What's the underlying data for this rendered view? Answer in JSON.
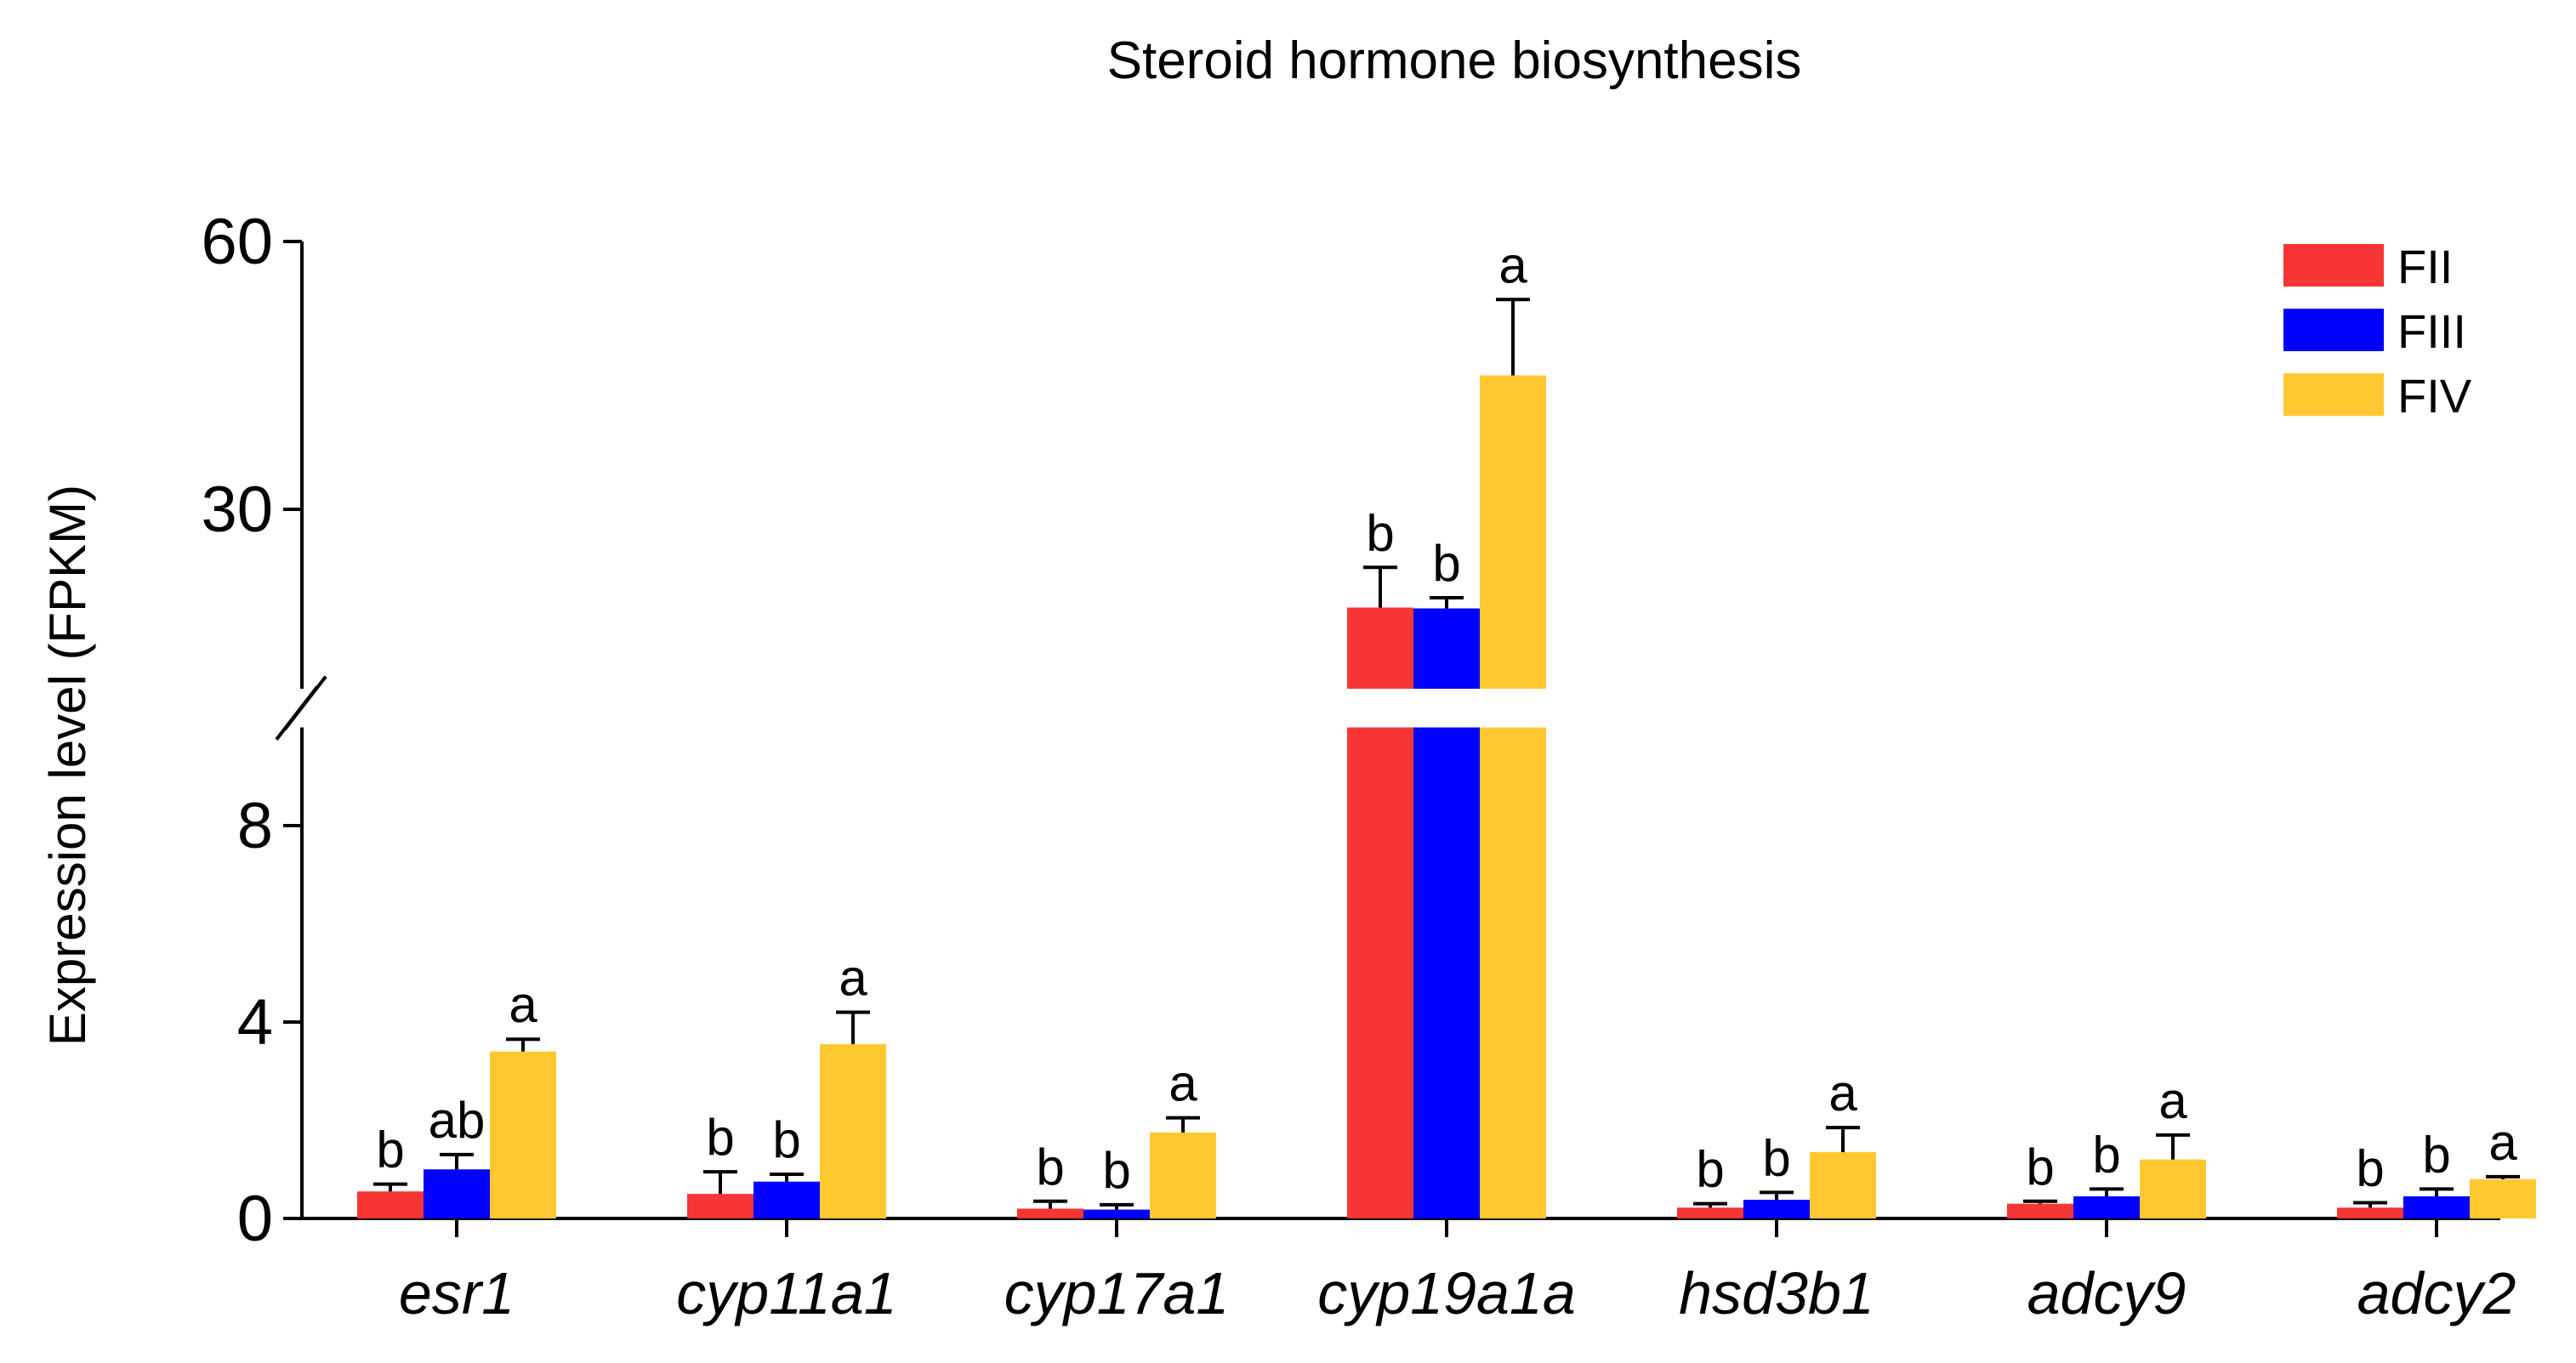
{
  "chart_data": {
    "type": "bar",
    "title": "Steroid hormone biosynthesis",
    "xlabel": "",
    "ylabel": "Expression level (FPKM)",
    "axis_break": {
      "lower_range": [
        0,
        10
      ],
      "upper_range": [
        12,
        60
      ]
    },
    "yticks": [
      {
        "value": 0,
        "label": "0"
      },
      {
        "value": 4,
        "label": "4"
      },
      {
        "value": 8,
        "label": "8"
      },
      {
        "value": 30,
        "label": "30"
      },
      {
        "value": 60,
        "label": "60"
      }
    ],
    "categories": [
      "esr1",
      "cyp11a1",
      "cyp17a1",
      "cyp19a1a",
      "hsd3b1",
      "adcy9",
      "adcy2"
    ],
    "series": [
      {
        "name": "FII",
        "color": "#f73535",
        "values": [
          0.55,
          0.5,
          0.2,
          19.0,
          0.22,
          0.3,
          0.22
        ],
        "errors": [
          0.15,
          0.45,
          0.15,
          4.5,
          0.08,
          0.05,
          0.1
        ],
        "labels": [
          "b",
          "b",
          "b",
          "b",
          "b",
          "b",
          "b"
        ]
      },
      {
        "name": "FIII",
        "color": "#0000ff",
        "values": [
          1.0,
          0.75,
          0.18,
          18.9,
          0.38,
          0.45,
          0.45
        ],
        "errors": [
          0.3,
          0.15,
          0.1,
          1.2,
          0.15,
          0.15,
          0.15
        ],
        "labels": [
          "ab",
          "b",
          "b",
          "b",
          "b",
          "b",
          "b"
        ]
      },
      {
        "name": "FIV",
        "color": "#ffc831",
        "values": [
          3.4,
          3.55,
          1.75,
          45.0,
          1.35,
          1.2,
          0.8
        ],
        "errors": [
          0.25,
          0.65,
          0.3,
          8.5,
          0.5,
          0.5,
          0.05
        ],
        "labels": [
          "a",
          "a",
          "a",
          "a",
          "a",
          "a",
          "a"
        ]
      }
    ],
    "legend": [
      "FII",
      "FIII",
      "FIV"
    ],
    "legend_position": "top-right"
  }
}
